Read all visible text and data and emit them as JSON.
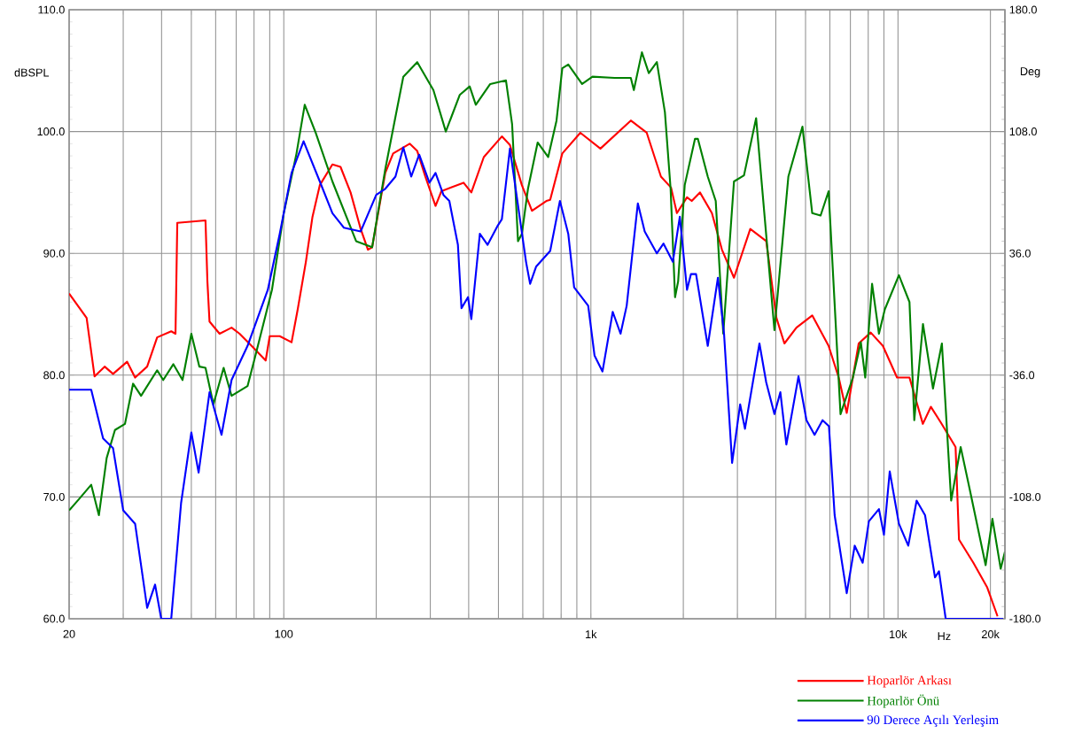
{
  "chart_data": {
    "type": "line",
    "xlabel": "Hz",
    "ylabel": "dBSPL",
    "y2label": "Deg",
    "log": "x",
    "grid": true,
    "legend": "bottom right",
    "xlim": [
      20,
      22300
    ],
    "ylim": [
      60,
      110
    ],
    "y2lim": [
      -180,
      180
    ],
    "xticks": [
      20,
      {
        "value": 30,
        "label": null
      },
      {
        "value": 40,
        "label": null
      },
      {
        "value": 50,
        "label": null
      },
      {
        "value": 60,
        "label": null
      },
      {
        "value": 70,
        "label": null
      },
      {
        "value": 80,
        "label": null
      },
      {
        "value": 90,
        "label": null
      },
      100,
      {
        "value": 200,
        "label": null
      },
      {
        "value": 300,
        "label": null
      },
      {
        "value": 400,
        "label": null
      },
      {
        "value": 500,
        "label": null
      },
      {
        "value": 600,
        "label": null
      },
      {
        "value": 700,
        "label": null
      },
      {
        "value": 800,
        "label": null
      },
      {
        "value": 900,
        "label": null
      },
      {
        "value": 1000,
        "label": "1k"
      },
      {
        "value": 2000,
        "label": null
      },
      {
        "value": 3000,
        "label": null
      },
      {
        "value": 4000,
        "label": null
      },
      {
        "value": 5000,
        "label": null
      },
      {
        "value": 6000,
        "label": null
      },
      {
        "value": 7000,
        "label": null
      },
      {
        "value": 8000,
        "label": null
      },
      {
        "value": 9000,
        "label": null
      },
      {
        "value": 10000,
        "label": "10k"
      },
      {
        "value": 20000,
        "label": "20k"
      }
    ],
    "yticks": [
      {
        "value": 60,
        "label": "60.0"
      },
      {
        "value": 70,
        "label": "70.0"
      },
      {
        "value": 80,
        "label": "80.0"
      },
      {
        "value": 90,
        "label": "90.0"
      },
      {
        "value": 100,
        "label": "100.0"
      },
      {
        "value": 110,
        "label": "110.0"
      }
    ],
    "y2ticks": [
      {
        "value": -180,
        "label": "-180.0"
      },
      {
        "value": -108,
        "label": "-108.0"
      },
      {
        "value": -36,
        "label": "-36.0"
      },
      {
        "value": 36,
        "label": "36.0"
      },
      {
        "value": 108,
        "label": "108.0"
      },
      {
        "value": 180,
        "label": "180.0"
      }
    ],
    "series": [
      {
        "name": "Hoparlör Arkası",
        "color": "#ff0000",
        "x": [
          20,
          22.8,
          24.2,
          26.1,
          27.8,
          30.9,
          32.8,
          35.9,
          38.7,
          43,
          44.4,
          45,
          55.6,
          56.4,
          57.3,
          61.8,
          67.6,
          71.8,
          78.6,
          87.3,
          90,
          97,
          106,
          111,
          118,
          124,
          131,
          144,
          153,
          165,
          178,
          188,
          194,
          214,
          227,
          257,
          272,
          289,
          312,
          326,
          385,
          408,
          448,
          513,
          545,
          596,
          643,
          716,
          737,
          807,
          924,
          1074,
          1349,
          1520,
          1691,
          1824,
          1906,
          2056,
          2130,
          2265,
          2478,
          2672,
          2924,
          3304,
          3724,
          4020,
          4267,
          4670,
          5257,
          5945,
          6412,
          6810,
          7450,
          8150,
          8930,
          9930,
          10900,
          12050,
          12800,
          13800,
          15400,
          15800,
          17600,
          19500,
          21100
        ],
        "values": [
          86.7,
          84.7,
          79.9,
          80.7,
          80.1,
          81.1,
          79.8,
          80.7,
          83.1,
          83.6,
          83.4,
          92.5,
          92.7,
          87.7,
          84.4,
          83.4,
          83.9,
          83.4,
          82.4,
          81.2,
          83.2,
          83.2,
          82.7,
          85.4,
          89.3,
          93,
          95.6,
          97.3,
          97.1,
          95,
          92,
          90.3,
          90.5,
          96.6,
          98.2,
          99,
          98.4,
          96.3,
          93.9,
          95.1,
          95.8,
          95,
          97.9,
          99.6,
          98.9,
          95.6,
          93.5,
          94.3,
          94.4,
          98.2,
          99.9,
          98.6,
          100.9,
          99.9,
          96.3,
          95.4,
          93.3,
          94.6,
          94.3,
          95,
          93.3,
          90.3,
          88,
          92,
          91,
          84.7,
          82.6,
          83.9,
          84.9,
          82.4,
          79.8,
          76.9,
          82.6,
          83.5,
          82.4,
          79.8,
          79.8,
          76,
          77.4,
          76.1,
          74.1,
          66.5,
          64.6,
          62.6,
          60.2
        ]
      },
      {
        "name": "Hoparlör Önü",
        "color": "#008000",
        "x": [
          20,
          21.5,
          23.6,
          25,
          26.5,
          28.2,
          30.4,
          32.3,
          34.3,
          38.7,
          40.5,
          43.7,
          46.8,
          50,
          53.1,
          55.6,
          59,
          63.7,
          67.6,
          76.2,
          81,
          91.5,
          100,
          110,
          117,
          127,
          144,
          172,
          194,
          214,
          231,
          245,
          272,
          307,
          337,
          374,
          403,
          422,
          470,
          529,
          554,
          579,
          596,
          624,
          671,
          726,
          773,
          807,
          844,
          936,
          1012,
          1194,
          1349,
          1380,
          1466,
          1544,
          1640,
          1742,
          1818,
          1880,
          1924,
          2021,
          2183,
          2230,
          2402,
          2550,
          2698,
          2924,
          3152,
          3452,
          3960,
          4396,
          4886,
          5257,
          5597,
          5945,
          6500,
          7130,
          7570,
          7825,
          8235,
          8670,
          9060,
          10070,
          10900,
          11300,
          12060,
          13000,
          13900,
          14900,
          16000,
          17100,
          19300,
          20300,
          21600,
          22300
        ],
        "values": [
          68.9,
          69.8,
          71,
          68.5,
          73.2,
          75.5,
          76,
          79.3,
          78.3,
          80.4,
          79.6,
          80.9,
          79.6,
          83.4,
          80.7,
          80.6,
          77.6,
          80.6,
          78.3,
          79.1,
          81.7,
          87,
          93.3,
          98.2,
          102.2,
          99.9,
          95.9,
          91,
          90.5,
          96.9,
          101.2,
          104.5,
          105.7,
          103.4,
          100,
          103,
          103.7,
          102.2,
          103.9,
          104.2,
          100.6,
          91,
          91.6,
          95.3,
          99.1,
          97.9,
          100.9,
          105.2,
          105.5,
          103.9,
          104.5,
          104.4,
          104.4,
          103.4,
          106.5,
          104.8,
          105.7,
          101.6,
          95.3,
          86.4,
          87.7,
          95.6,
          99.4,
          99.4,
          96.3,
          94.3,
          83.4,
          95.9,
          96.4,
          101.1,
          83.7,
          96.3,
          100.4,
          93.3,
          93.1,
          95.1,
          76.8,
          79.8,
          82.7,
          79.8,
          87.5,
          83.4,
          85.4,
          88.2,
          86,
          76.3,
          84.2,
          78.9,
          82.6,
          69.7,
          74.1,
          70.7,
          64.4,
          68.2,
          64.1,
          65.5
        ]
      },
      {
        "name": "90 Derece Açılı Yerleşim",
        "color": "#0000ff",
        "x": [
          20,
          23.6,
          25.8,
          27.8,
          30,
          32.8,
          35.9,
          38.1,
          39.9,
          43,
          46.3,
          50,
          52.8,
          57.3,
          62.7,
          67.6,
          76.2,
          88.7,
          97,
          106,
          116,
          131,
          144,
          157,
          178,
          200,
          214,
          231,
          245,
          260,
          276,
          298,
          312,
          331,
          346,
          369,
          379,
          398,
          408,
          435,
          461,
          498,
          513,
          545,
          615,
          634,
          663,
          737,
          793,
          844,
          882,
          980,
          1028,
          1091,
          1178,
          1249,
          1308,
          1422,
          1497,
          1640,
          1724,
          1849,
          1948,
          2056,
          2118,
          2200,
          2402,
          2592,
          2714,
          2883,
          3062,
          3175,
          3539,
          3724,
          3960,
          4140,
          4330,
          4743,
          5036,
          5350,
          5680,
          5960,
          6220,
          6810,
          7230,
          7675,
          8040,
          8670,
          9000,
          9400,
          10070,
          10800,
          11500,
          12250,
          13200,
          13600,
          14300,
          22000
        ],
        "values": [
          78.8,
          78.8,
          74.8,
          74,
          68.9,
          67.8,
          60.9,
          62.8,
          60,
          60,
          69.5,
          75.3,
          72,
          78.6,
          75.1,
          79.6,
          82.4,
          87,
          91.6,
          96.6,
          99.2,
          95.9,
          93.3,
          92.1,
          91.8,
          94.8,
          95.3,
          96.3,
          98.7,
          96.3,
          98.1,
          95.8,
          96.6,
          94.8,
          94.3,
          90.7,
          85.5,
          86.4,
          84.6,
          91.6,
          90.7,
          92.3,
          92.8,
          98.6,
          89.3,
          87.5,
          88.9,
          90.2,
          94.3,
          91.6,
          87.2,
          85.7,
          81.6,
          80.3,
          85.2,
          83.4,
          85.7,
          94.1,
          91.8,
          90,
          90.8,
          89.3,
          93,
          87,
          88.3,
          88.3,
          82.4,
          88,
          83.4,
          72.8,
          77.6,
          75.6,
          82.6,
          79.4,
          76.8,
          78.6,
          74.3,
          79.9,
          76.3,
          75.1,
          76.3,
          75.8,
          68.5,
          62.1,
          66,
          64.6,
          68,
          69,
          66.9,
          72.1,
          67.8,
          66,
          69.7,
          68.5,
          63.4,
          63.9,
          60,
          60
        ]
      }
    ]
  }
}
